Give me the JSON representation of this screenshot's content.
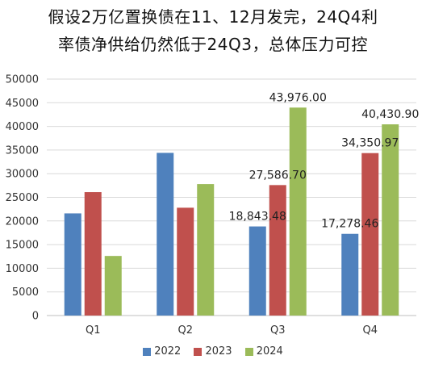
{
  "title_lines": [
    "假设2万亿置换债在11、12月发完，24Q4利",
    "率债净供给仍然低于24Q3，总体压力可控"
  ],
  "chart_data": {
    "type": "bar",
    "title": "假设2万亿置换债在11、12月发完，24Q4利率债净供给仍然低于24Q3，总体压力可控",
    "categories": [
      "Q1",
      "Q2",
      "Q3",
      "Q4"
    ],
    "series": [
      {
        "name": "2022",
        "color": "#4f81bd",
        "values": [
          21600,
          34400,
          18843.48,
          17278.46
        ]
      },
      {
        "name": "2023",
        "color": "#c0504d",
        "values": [
          26100,
          22800,
          27586.7,
          34350.97
        ]
      },
      {
        "name": "2024",
        "color": "#9bbb59",
        "values": [
          12600,
          27800,
          43976.0,
          40430.9
        ]
      }
    ],
    "data_labels": [
      {
        "series": 0,
        "category": 2,
        "text": "18,843.48"
      },
      {
        "series": 0,
        "category": 3,
        "text": "17,278.46"
      },
      {
        "series": 1,
        "category": 2,
        "text": "27,586.70"
      },
      {
        "series": 1,
        "category": 3,
        "text": "34,350.97"
      },
      {
        "series": 2,
        "category": 2,
        "text": "43,976.00"
      },
      {
        "series": 2,
        "category": 3,
        "text": "40,430.90"
      }
    ],
    "yticks": [
      "0",
      "5000",
      "10000",
      "15000",
      "20000",
      "25000",
      "30000",
      "35000",
      "40000",
      "45000",
      "50000"
    ],
    "ylim": [
      0,
      50000
    ],
    "grid": true,
    "legend_position": "bottom"
  }
}
